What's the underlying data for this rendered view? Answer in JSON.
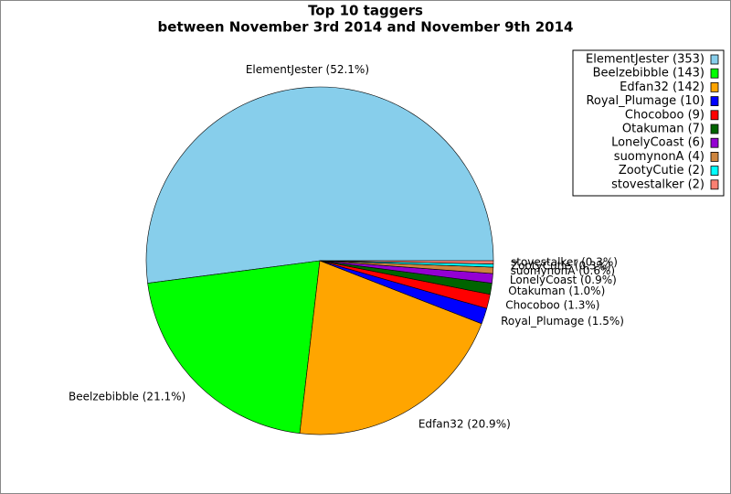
{
  "chart_data": {
    "type": "pie",
    "title": "Top 10 taggers",
    "subtitle": "between November 3rd 2014 and November 9th 2014",
    "categories": [
      "ElementJester (353)",
      "Beelzebibble (143)",
      "Edfan32 (142)",
      "Royal_Plumage (10)",
      "Chocoboo (9)",
      "Otakuman (7)",
      "LonelyCoast (6)",
      "suomynonA (4)",
      "ZootyCutie (2)",
      "stovestalker (2)"
    ],
    "values": [
      353,
      143,
      142,
      10,
      9,
      7,
      6,
      4,
      2,
      2
    ],
    "slice_labels": [
      "ElementJester (52.1%)",
      "Beelzebibble (21.1%)",
      "Edfan32 (20.9%)",
      "Royal_Plumage (1.5%)",
      "Chocoboo (1.3%)",
      "Otakuman (1.0%)",
      "LonelyCoast (0.9%)",
      "suomynonA (0.6%)",
      "ZootyCutie (0.3%)",
      "stovestalker (0.3%)"
    ],
    "colors": [
      "#87ceeb",
      "#00ff00",
      "#ffa500",
      "#0000ff",
      "#ff0000",
      "#006400",
      "#9400d3",
      "#cd853f",
      "#00ffff",
      "#fa8072"
    ],
    "legend": "upper right"
  }
}
